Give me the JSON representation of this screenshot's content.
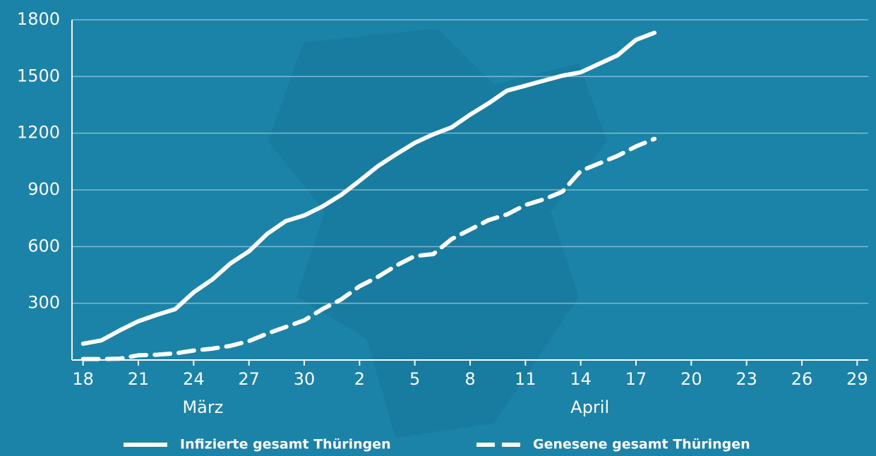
{
  "chart_data": {
    "type": "line",
    "background": "#1b82a8",
    "x": [
      0,
      1,
      2,
      3,
      4,
      5,
      6,
      7,
      8,
      9,
      10,
      11,
      12,
      13,
      14,
      15,
      16,
      17,
      18,
      19,
      20,
      21,
      22,
      23,
      24,
      25,
      26,
      27,
      28,
      29,
      30,
      31
    ],
    "xlim": [
      -0.6,
      42.6
    ],
    "xticks": [
      {
        "value": 0,
        "label": "18"
      },
      {
        "value": 3,
        "label": "21"
      },
      {
        "value": 6,
        "label": "24"
      },
      {
        "value": 9,
        "label": "27"
      },
      {
        "value": 12,
        "label": "30"
      },
      {
        "value": 15,
        "label": "2"
      },
      {
        "value": 18,
        "label": "5"
      },
      {
        "value": 21,
        "label": "8"
      },
      {
        "value": 24,
        "label": "11"
      },
      {
        "value": 27,
        "label": "14"
      },
      {
        "value": 30,
        "label": "17"
      },
      {
        "value": 33,
        "label": "20"
      },
      {
        "value": 36,
        "label": "23"
      },
      {
        "value": 39,
        "label": "26"
      },
      {
        "value": 42,
        "label": "29"
      }
    ],
    "month_labels": [
      {
        "value": 6.5,
        "label": "März"
      },
      {
        "value": 27.5,
        "label": "April"
      }
    ],
    "ylim": [
      0,
      1800
    ],
    "yticks": [
      300,
      600,
      900,
      1200,
      1500,
      1800
    ],
    "grid": true,
    "legend": "bottom",
    "series": [
      {
        "name": "Infizierte gesamt Thüringen",
        "color": "#ffffff",
        "dash": "solid",
        "values": [
          86,
          104,
          157,
          205,
          239,
          269,
          358,
          425,
          511,
          575,
          668,
          735,
          765,
          813,
          873,
          948,
          1026,
          1089,
          1149,
          1194,
          1231,
          1298,
          1358,
          1425,
          1451,
          1478,
          1504,
          1522,
          1567,
          1612,
          1694,
          1731
        ]
      },
      {
        "name": "Genesene gesamt Thüringen",
        "color": "#ffffff",
        "dash": "dashed",
        "values": [
          5,
          5,
          7,
          25,
          28,
          35,
          50,
          60,
          75,
          100,
          140,
          175,
          210,
          270,
          320,
          390,
          440,
          500,
          550,
          560,
          640,
          690,
          740,
          770,
          820,
          850,
          890,
          1000,
          1040,
          1080,
          1130,
          1170
        ]
      }
    ]
  }
}
